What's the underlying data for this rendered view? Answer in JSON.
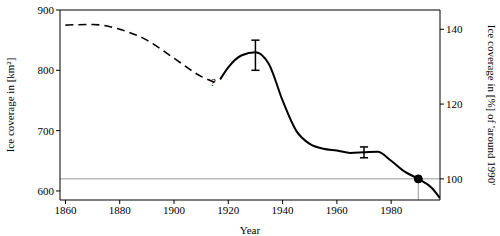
{
  "chart_data": {
    "type": "line",
    "x_label": "Year",
    "y_label": "Ice coverage in [km²]",
    "y2_label": "Ice coverage in [%] of 'around 1990'",
    "xlim": [
      1858,
      1998
    ],
    "xticks": [
      1860,
      1880,
      1900,
      1920,
      1940,
      1960,
      1980
    ],
    "ylim": [
      585,
      900
    ],
    "yticks": [
      600,
      700,
      800,
      900
    ],
    "y2lim": [
      94.35,
      145.16
    ],
    "y2ticks": [
      100,
      120,
      140
    ],
    "grid": false,
    "series": [
      {
        "color": "#000000",
        "line_style": "dashed",
        "x": [
          1860,
          1870,
          1880,
          1890,
          1900,
          1910,
          1915
        ],
        "values": [
          875,
          876,
          868,
          850,
          820,
          790,
          780
        ]
      },
      {
        "color": "#000000",
        "line_style": "solid",
        "x": [
          1917,
          1920,
          1925,
          1930,
          1935,
          1940,
          1945,
          1950,
          1955,
          1960,
          1965,
          1970,
          1975,
          1980,
          1985,
          1990,
          1995,
          1998
        ],
        "values": [
          785,
          805,
          825,
          830,
          810,
          750,
          700,
          678,
          670,
          667,
          663,
          664,
          665,
          650,
          632,
          620,
          605,
          588
        ]
      }
    ],
    "error_bars": [
      {
        "x": 1930,
        "low": 800,
        "high": 850
      },
      {
        "x": 1970,
        "low": 655,
        "high": 673
      }
    ],
    "reference_point": {
      "x": 1990,
      "y": 620
    },
    "annotations": [
      {
        "text": "?",
        "x": 1916,
        "y": 780
      }
    ]
  }
}
